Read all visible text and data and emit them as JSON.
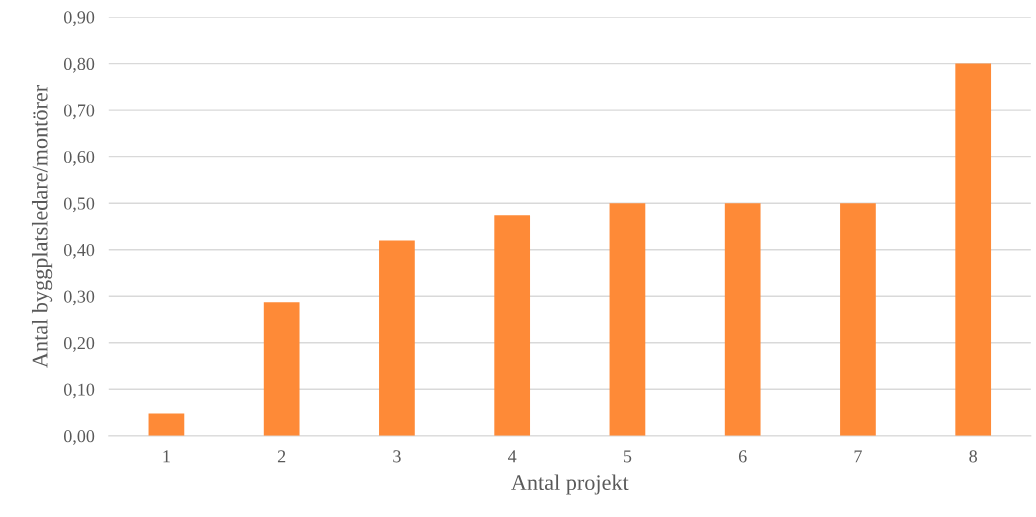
{
  "chart_data": {
    "type": "bar",
    "xlabel": "Antal projekt",
    "ylabel": "Antal byggplatsledare/montörer",
    "categories": [
      "1",
      "2",
      "3",
      "4",
      "5",
      "6",
      "7",
      "8"
    ],
    "values": [
      0.048,
      0.287,
      0.42,
      0.474,
      0.5,
      0.5,
      0.5,
      0.8
    ],
    "color": "#fe8a37",
    "ylim": [
      0,
      0.9
    ],
    "yticks": [
      {
        "value": 0,
        "label": "0,00"
      },
      {
        "value": 0.1,
        "label": "0,10"
      },
      {
        "value": 0.2,
        "label": "0,20"
      },
      {
        "value": 0.3,
        "label": "0,30"
      },
      {
        "value": 0.4,
        "label": "0,40"
      },
      {
        "value": 0.5,
        "label": "0,50"
      },
      {
        "value": 0.6,
        "label": "0,60"
      },
      {
        "value": 0.7,
        "label": "0,70"
      },
      {
        "value": 0.8,
        "label": "0,80"
      },
      {
        "value": 0.9,
        "label": "0,90"
      }
    ],
    "grid": "y",
    "legend": false
  }
}
